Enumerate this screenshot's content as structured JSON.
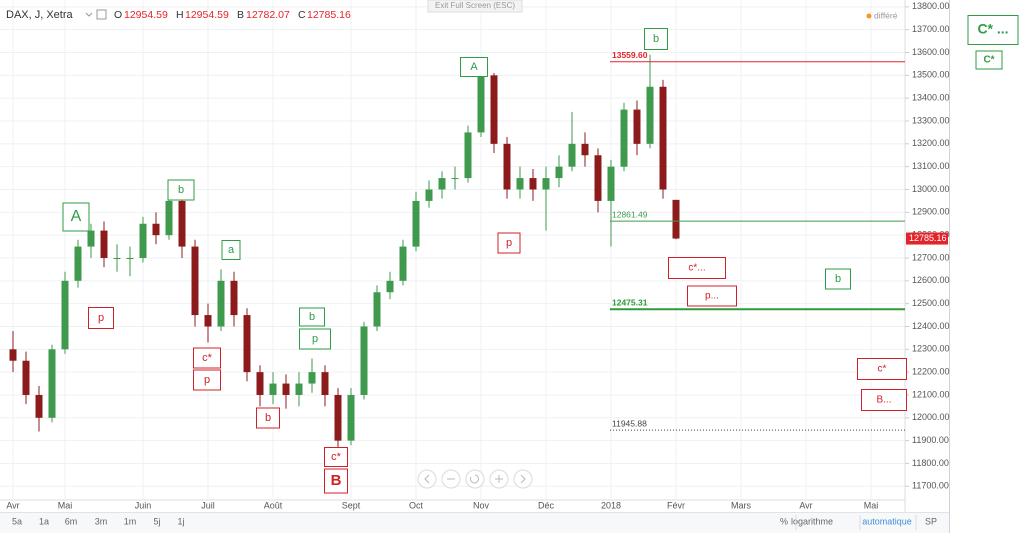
{
  "header": {
    "symbol": "DAX, J, Xetra",
    "ohlc": [
      {
        "key": "O",
        "value": "12954.59"
      },
      {
        "key": "H",
        "value": "12954.59"
      },
      {
        "key": "B",
        "value": "12782.07"
      },
      {
        "key": "C",
        "value": "12785.16"
      }
    ],
    "exit_fullscreen": "Exit Full Screen (ESC)",
    "delayed": "différé"
  },
  "chart_data": {
    "type": "candlestick",
    "categories": [
      "Avr",
      null,
      null,
      null,
      "Mai",
      null,
      null,
      null,
      null,
      null,
      "Juin",
      null,
      null,
      null,
      null,
      "Juil",
      null,
      null,
      null,
      null,
      "Août",
      null,
      null,
      null,
      null,
      null,
      "Sept",
      null,
      null,
      null,
      null,
      "Oct",
      null,
      null,
      null,
      null,
      "Nov",
      null,
      null,
      null,
      null,
      "Déc",
      null,
      null,
      null,
      null,
      "2018",
      null,
      null,
      null,
      null,
      "Févr",
      null,
      null,
      null,
      null,
      "Mars",
      null,
      null,
      null,
      null,
      "Avr",
      null,
      null,
      null,
      null,
      "Mai",
      null,
      null
    ],
    "open": [
      12300,
      12250,
      12100,
      12000,
      12300,
      12600,
      12750,
      12820,
      12700,
      12700,
      12700,
      12850,
      12800,
      12950,
      12750,
      12450,
      12400,
      12600,
      12450,
      12200,
      12100,
      12150,
      12100,
      12150,
      12200,
      12100,
      11900,
      12100,
      12400,
      12550,
      12600,
      12750,
      12950,
      13000,
      13050,
      13050,
      13250,
      13500,
      13200,
      13000,
      13050,
      13000,
      13050,
      13100,
      13200,
      13150,
      12950,
      13100,
      13350,
      13200,
      13450,
      12954.59,
      null,
      null,
      null,
      null,
      null,
      null,
      null,
      null,
      null,
      null,
      null,
      null,
      null,
      null,
      null,
      null,
      null
    ],
    "high": [
      12380,
      12290,
      12140,
      12320,
      12640,
      12780,
      12850,
      12860,
      12760,
      12750,
      12880,
      12900,
      12980,
      12960,
      12780,
      12500,
      12650,
      12640,
      12480,
      12230,
      12200,
      12190,
      12200,
      12260,
      12230,
      12130,
      12130,
      12420,
      12580,
      12640,
      12780,
      12990,
      13040,
      13080,
      13100,
      13280,
      13530,
      13510,
      13230,
      13100,
      13090,
      13100,
      13150,
      13340,
      13250,
      13180,
      13130,
      13380,
      13390,
      13590,
      13480,
      12954.59,
      null,
      null,
      null,
      null,
      null,
      null,
      null,
      null,
      null,
      null,
      null,
      null,
      null,
      null,
      null,
      null,
      null
    ],
    "low": [
      12200,
      12060,
      11940,
      11980,
      12280,
      12570,
      12700,
      12660,
      12640,
      12620,
      12680,
      12760,
      12780,
      12700,
      12400,
      12330,
      12380,
      12400,
      12160,
      12050,
      12060,
      12040,
      12050,
      12110,
      12050,
      11870,
      11880,
      12080,
      12380,
      12520,
      12580,
      12730,
      12920,
      12960,
      13000,
      13030,
      13230,
      13160,
      12960,
      12960,
      12950,
      12820,
      13010,
      13080,
      13100,
      12900,
      12750,
      13080,
      13150,
      13180,
      12960,
      12782.07,
      null,
      null,
      null,
      null,
      null,
      null,
      null,
      null,
      null,
      null,
      null,
      null,
      null,
      null,
      null,
      null,
      null
    ],
    "close": [
      12250,
      12100,
      12000,
      12300,
      12600,
      12750,
      12820,
      12700,
      12700,
      12700,
      12850,
      12800,
      12950,
      12750,
      12450,
      12400,
      12600,
      12450,
      12200,
      12100,
      12150,
      12100,
      12150,
      12200,
      12100,
      11900,
      12100,
      12400,
      12550,
      12600,
      12750,
      12950,
      13000,
      13050,
      13050,
      13250,
      13500,
      13200,
      13000,
      13050,
      13000,
      13050,
      13100,
      13200,
      13150,
      12950,
      13100,
      13350,
      13200,
      13450,
      13000,
      12785.16,
      null,
      null,
      null,
      null,
      null,
      null,
      null,
      null,
      null,
      null,
      null,
      null,
      null,
      null,
      null,
      null,
      null
    ],
    "up_color": "#3f9a4e",
    "down_color": "#8c1c1c",
    "last_color": "#e3242b",
    "ylim": [
      11640,
      13830
    ],
    "yticks": [
      {
        "value": 11700,
        "label": "11700.00"
      },
      {
        "value": 11800,
        "label": "11800.00"
      },
      {
        "value": 11900,
        "label": "11900.00"
      },
      {
        "value": 12000,
        "label": "12000.00"
      },
      {
        "value": 12100,
        "label": "12100.00"
      },
      {
        "value": 12200,
        "label": "12200.00"
      },
      {
        "value": 12300,
        "label": "12300.00"
      },
      {
        "value": 12400,
        "label": "12400.00"
      },
      {
        "value": 12500,
        "label": "12500.00"
      },
      {
        "value": 12600,
        "label": "12600.00"
      },
      {
        "value": 12700,
        "label": "12700.00"
      },
      {
        "value": 12800,
        "label": "12800.00"
      },
      {
        "value": 12900,
        "label": "12900.00"
      },
      {
        "value": 13000,
        "label": "13000.00"
      },
      {
        "value": 13100,
        "label": "13100.00"
      },
      {
        "value": 13200,
        "label": "13200.00"
      },
      {
        "value": 13300,
        "label": "13300.00"
      },
      {
        "value": 13400,
        "label": "13400.00"
      },
      {
        "value": 13500,
        "label": "13500.00"
      },
      {
        "value": 13600,
        "label": "13600.00"
      },
      {
        "value": 13700,
        "label": "13700.00"
      },
      {
        "value": 13800,
        "label": "13800.00"
      }
    ],
    "grid": true,
    "levels": [
      {
        "value": 13559.6,
        "label": "13559.60",
        "color": "#e3242b",
        "style": "solid",
        "weight": "bold"
      },
      {
        "value": 12861.49,
        "label": "12861.49",
        "color": "#3f9a4e",
        "style": "solid",
        "weight": "normal"
      },
      {
        "value": 12475.31,
        "label": "12475.31",
        "color": "#2e9a3a",
        "style": "thick",
        "weight": "bold"
      },
      {
        "value": 11945.88,
        "label": "11945.88",
        "color": "#444444",
        "style": "dotted",
        "weight": "normal"
      }
    ]
  },
  "annotations": [
    {
      "text": "A",
      "color": "green"
    },
    {
      "text": "b",
      "color": "green"
    },
    {
      "text": "a",
      "color": "green"
    },
    {
      "text": "p",
      "color": "red"
    },
    {
      "text": "c*",
      "color": "red"
    },
    {
      "text": "p",
      "color": "red"
    },
    {
      "text": "b",
      "color": "green"
    },
    {
      "text": "p",
      "color": "green"
    },
    {
      "text": "b",
      "color": "red"
    },
    {
      "text": "c*",
      "color": "red"
    },
    {
      "text": "B",
      "color": "red"
    },
    {
      "text": "A",
      "color": "green"
    },
    {
      "text": "p",
      "color": "red"
    },
    {
      "text": "b",
      "color": "green"
    },
    {
      "text": "c*...",
      "color": "red"
    },
    {
      "text": "p...",
      "color": "red"
    },
    {
      "text": "b",
      "color": "green"
    },
    {
      "text": "c*",
      "color": "red"
    },
    {
      "text": "B...",
      "color": "red"
    },
    {
      "text": "C* ...",
      "color": "green"
    },
    {
      "text": "C*",
      "color": "green"
    }
  ],
  "toolbar": {
    "ranges": [
      "5a",
      "1a",
      "6m",
      "3m",
      "1m",
      "5j",
      "1j"
    ],
    "options": [
      "%",
      "logarithme",
      "automatique",
      "SP"
    ]
  }
}
